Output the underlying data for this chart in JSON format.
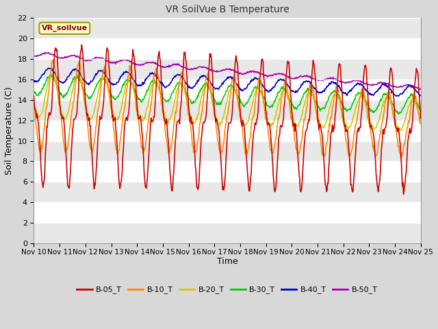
{
  "title": "VR SoilVue B Temperature",
  "xlabel": "Time",
  "ylabel": "Soil Temperature (C)",
  "ylim": [
    0,
    22
  ],
  "yticks": [
    0,
    2,
    4,
    6,
    8,
    10,
    12,
    14,
    16,
    18,
    20,
    22
  ],
  "x_tick_labels": [
    "Nov 10",
    "Nov 11",
    "Nov 12",
    "Nov 13",
    "Nov 14",
    "Nov 15",
    "Nov 16",
    "Nov 17",
    "Nov 18",
    "Nov 19",
    "Nov 20",
    "Nov 21",
    "Nov 22",
    "Nov 23",
    "Nov 24",
    "Nov 25"
  ],
  "series_colors": {
    "B-05_T": "#cc0000",
    "B-10_T": "#ff8800",
    "B-20_T": "#cccc00",
    "B-30_T": "#00cc00",
    "B-40_T": "#0000cc",
    "B-50_T": "#aa00aa"
  },
  "legend_label": "VR_soilvue",
  "fig_bg_color": "#d8d8d8",
  "plot_bg_color": "#ffffff",
  "band_color": "#e8e8e8",
  "grid_color": "#cccccc",
  "linewidth": 1.2,
  "figsize": [
    6.4,
    4.8
  ],
  "dpi": 100
}
